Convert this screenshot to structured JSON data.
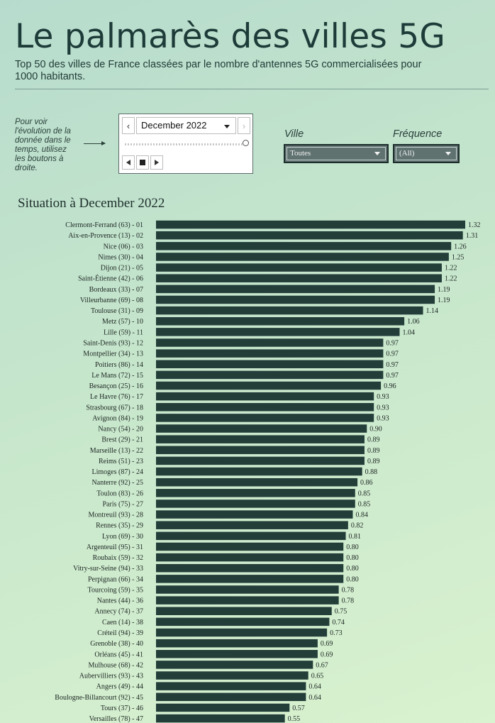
{
  "header": {
    "title": "Le palmarès des villes 5G",
    "subtitle": "Top 50 des villes de France classées par le nombre d'antennes 5G commercialisées pour 1000 habitants."
  },
  "hint": {
    "text": "Pour voir l'évolution de la donnée dans le temps, utilisez les boutons à droite."
  },
  "player": {
    "date_value": "December 2022",
    "prev_icon": "chevron-left-icon",
    "next_icon": "chevron-right-icon"
  },
  "filters": {
    "ville": {
      "label": "Ville",
      "value": "Toutes"
    },
    "frequence": {
      "label": "Fréquence",
      "value": "(All)"
    }
  },
  "colors": {
    "bar": "#233d39",
    "background_start": "#b7dccd",
    "background_end": "#d9f2cf"
  },
  "chart_data": {
    "type": "bar",
    "orientation": "horizontal",
    "title": "Situation à December 2022",
    "categories": [
      "Clermont-Ferrand (63)  - 01",
      "Aix-en-Provence (13)  - 02",
      "Nice (06)  - 03",
      "Nimes (30)  - 04",
      "Dijon (21)  - 05",
      "Saint-Étienne (42)  - 06",
      "Bordeaux (33)  - 07",
      "Villeurbanne (69)  - 08",
      "Toulouse (31)  - 09",
      "Metz (57)  - 10",
      "Lille (59)  - 11",
      "Saint-Denis (93)  - 12",
      "Montpellier (34)  - 13",
      "Poitiers (86)  - 14",
      "Le Mans (72)  - 15",
      "Besançon (25)  - 16",
      "Le Havre (76)  - 17",
      "Strasbourg (67)  - 18",
      "Avignon (84)  - 19",
      "Nancy (54)  - 20",
      "Brest (29)  - 21",
      "Marseille (13)  - 22",
      "Reims (51)  - 23",
      "Limoges (87)  - 24",
      "Nanterre (92)  - 25",
      "Toulon (83)  - 26",
      "Paris (75)  - 27",
      "Montreuil (93)  - 28",
      "Rennes (35)  - 29",
      "Lyon (69)  - 30",
      "Argenteuil (95)  - 31",
      "Roubaix (59)  - 32",
      "Vitry-sur-Seine (94)  - 33",
      "Perpignan (66)  - 34",
      "Tourcoing (59)  - 35",
      "Nantes (44)  - 36",
      "Annecy (74)  - 37",
      "Caen (14)  - 38",
      "Créteil (94)  - 39",
      "Grenoble (38)  - 40",
      "Orléans (45)  - 41",
      "Mulhouse (68)  - 42",
      "Aubervilliers (93)  - 43",
      "Angers (49)  - 44",
      "Boulogne-Billancourt (92)  - 45",
      "Tours (37)  - 46",
      "Versailles (78)  - 47"
    ],
    "values": [
      1.32,
      1.31,
      1.26,
      1.25,
      1.22,
      1.22,
      1.19,
      1.19,
      1.14,
      1.06,
      1.04,
      0.97,
      0.97,
      0.97,
      0.97,
      0.96,
      0.93,
      0.93,
      0.93,
      0.9,
      0.89,
      0.89,
      0.89,
      0.88,
      0.86,
      0.85,
      0.85,
      0.84,
      0.82,
      0.81,
      0.8,
      0.8,
      0.8,
      0.8,
      0.78,
      0.78,
      0.75,
      0.74,
      0.73,
      0.69,
      0.69,
      0.67,
      0.65,
      0.64,
      0.64,
      0.57,
      0.55
    ],
    "labels": [
      "1.32",
      "1.31",
      "1.26",
      "1.25",
      "1.22",
      "1.22",
      "1.19",
      "1.19",
      "1.14",
      "1.06",
      "1.04",
      "0.97",
      "0.97",
      "0.97",
      "0.97",
      "0.96",
      "0.93",
      "0.93",
      "0.93",
      "0.90",
      "0.89",
      "0.89",
      "0.89",
      "0.88",
      "0.86",
      "0.85",
      "0.85",
      "0.84",
      "0.82",
      "0.81",
      "0.80",
      "0.80",
      "0.80",
      "0.80",
      "0.78",
      "0.78",
      "0.75",
      "0.74",
      "0.73",
      "0.69",
      "0.69",
      "0.67",
      "0.65",
      "0.64",
      "0.64",
      "0.57",
      "0.55"
    ],
    "xlim": [
      0,
      1.32
    ],
    "grid": false,
    "legend": "none"
  }
}
